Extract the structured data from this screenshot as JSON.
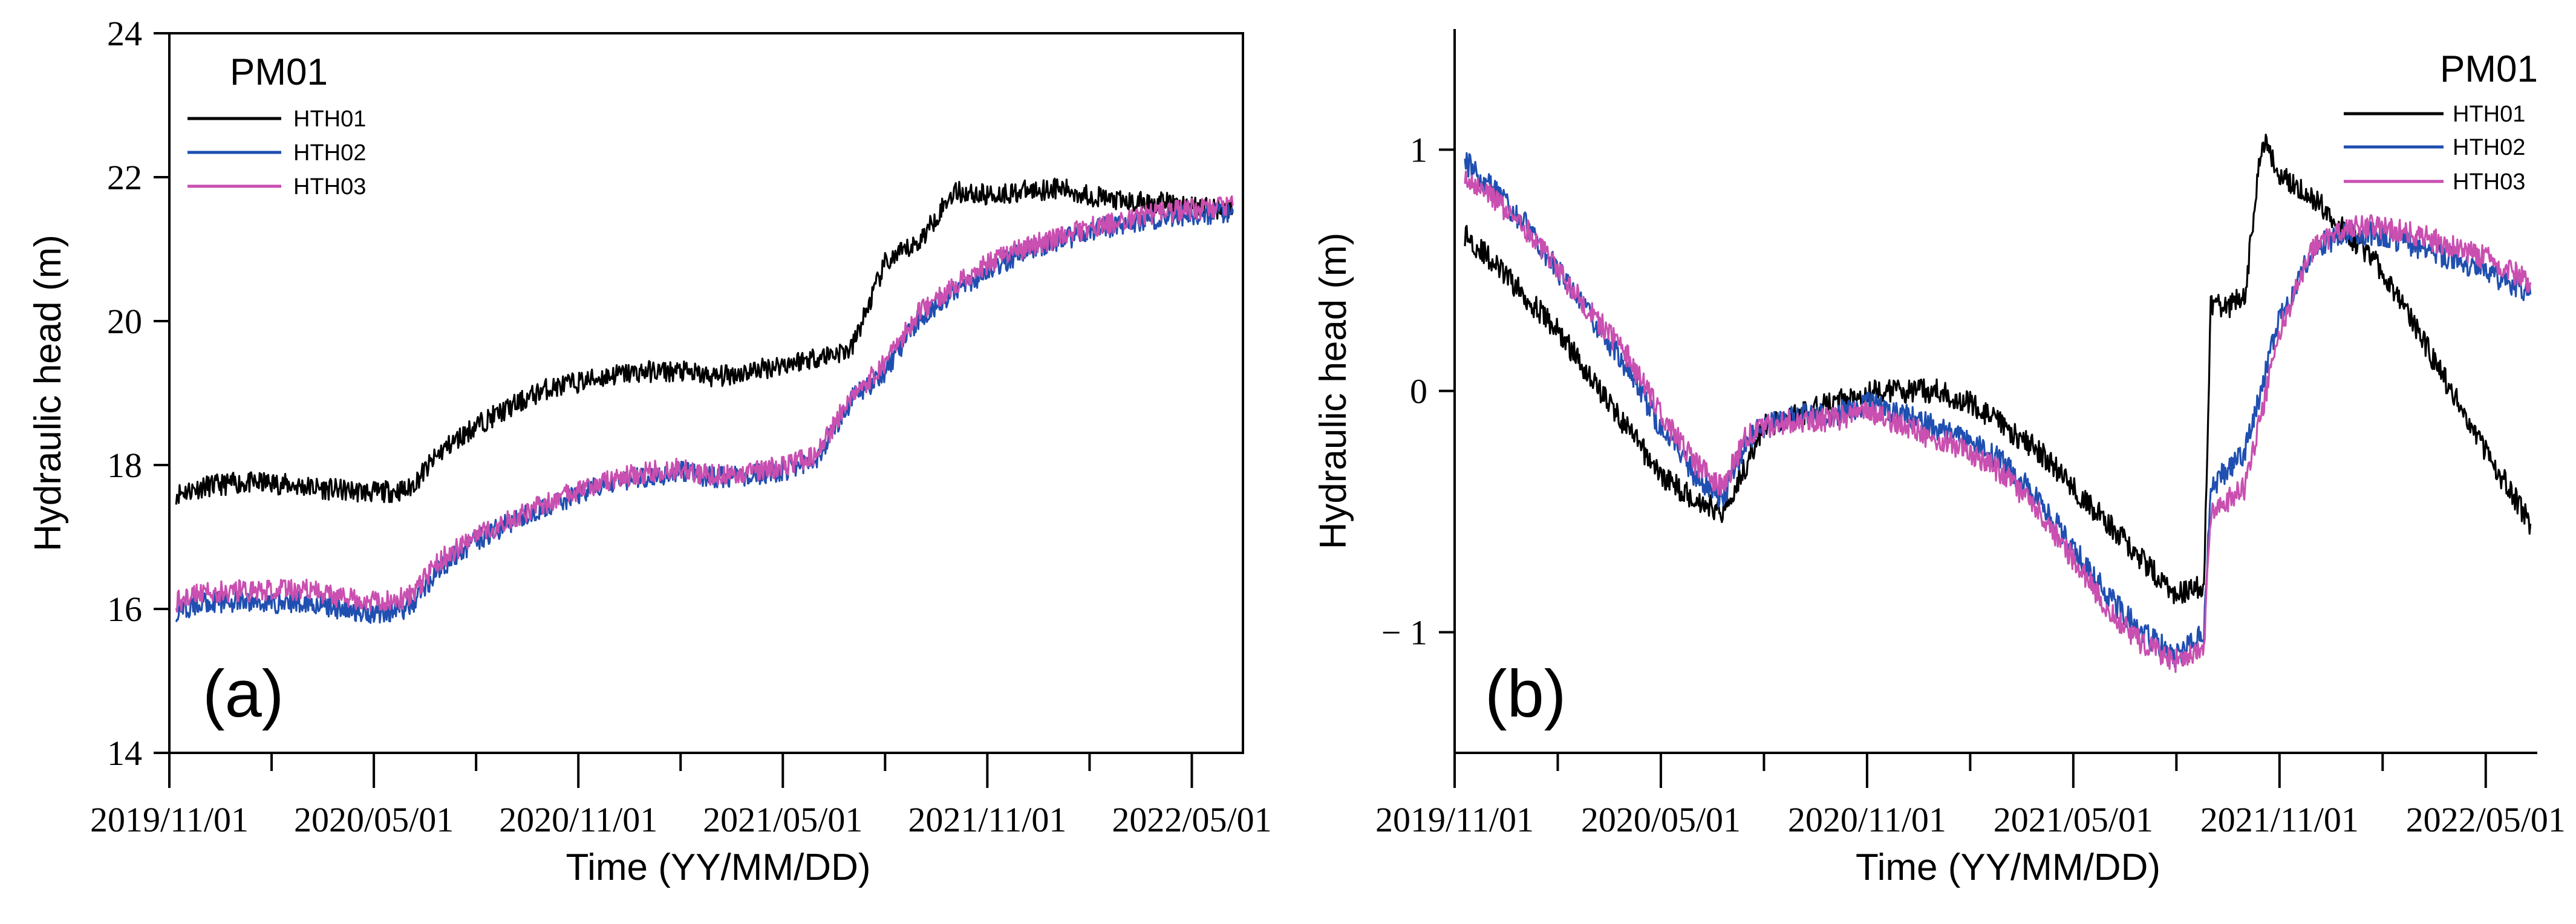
{
  "chart_data": [
    {
      "panel_label": "(a)",
      "type": "line",
      "xlabel": "Time (YY/MM/DD)",
      "ylabel": "Hydraulic head (m)",
      "ylim": [
        14,
        24
      ],
      "yticks": [
        "14",
        "16",
        "18",
        "20",
        "22",
        "24"
      ],
      "ytick_values": [
        14,
        16,
        18,
        20,
        22,
        24
      ],
      "xtick_labels": [
        "2019/11/01",
        "2020/05/01",
        "2020/11/01",
        "2021/05/01",
        "2021/11/01",
        "2022/05/01"
      ],
      "xtick_months": [
        0,
        6,
        12,
        18,
        24,
        30
      ],
      "xlim_months": [
        0,
        31.5
      ],
      "legend_title": "PM01",
      "legend_position": "top-left",
      "series": [
        {
          "name": "HTH01",
          "color": "#000000",
          "x": [
            0.2,
            1,
            2,
            3,
            4,
            5,
            6,
            7,
            8,
            9,
            10,
            11,
            12,
            13,
            14,
            15,
            16,
            17,
            18,
            19,
            20,
            21,
            21.5,
            22,
            23,
            24,
            25,
            26,
            27,
            28,
            29,
            30,
            31.2
          ],
          "values": [
            17.6,
            17.7,
            17.75,
            17.75,
            17.7,
            17.65,
            17.62,
            17.65,
            18.2,
            18.55,
            18.8,
            19.05,
            19.15,
            19.25,
            19.3,
            19.3,
            19.22,
            19.3,
            19.4,
            19.5,
            19.6,
            20.8,
            20.95,
            21.1,
            21.8,
            21.75,
            21.8,
            21.85,
            21.75,
            21.65,
            21.65,
            21.6,
            21.55
          ]
        },
        {
          "name": "HTH02",
          "color": "#1f4fb0",
          "x": [
            0.2,
            1,
            2,
            3,
            4,
            5,
            6,
            7,
            8,
            9,
            10,
            11,
            12,
            13,
            14,
            15,
            16,
            17,
            18,
            19,
            20,
            21,
            22,
            23,
            24,
            25,
            26,
            27,
            28,
            29,
            30,
            31.2
          ],
          "values": [
            15.95,
            16.1,
            16.1,
            16.08,
            16.1,
            16.0,
            15.95,
            16.0,
            16.6,
            16.95,
            17.2,
            17.4,
            17.6,
            17.75,
            17.85,
            17.9,
            17.82,
            17.85,
            17.92,
            18.1,
            18.9,
            19.3,
            20.05,
            20.4,
            20.7,
            20.95,
            21.1,
            21.25,
            21.35,
            21.42,
            21.48,
            21.5
          ]
        },
        {
          "name": "HTH03",
          "color": "#c94fb0",
          "x": [
            0.2,
            1,
            2,
            3,
            4,
            5,
            6,
            7,
            8,
            9,
            10,
            11,
            12,
            13,
            14,
            15,
            16,
            17,
            18,
            19,
            20,
            21,
            22,
            23,
            24,
            25,
            26,
            27,
            28,
            29,
            30,
            31.2
          ],
          "values": [
            16.1,
            16.22,
            16.25,
            16.25,
            16.28,
            16.15,
            16.12,
            16.15,
            16.7,
            17.0,
            17.25,
            17.45,
            17.65,
            17.8,
            17.9,
            17.95,
            17.85,
            17.9,
            17.98,
            18.15,
            18.95,
            19.4,
            20.12,
            20.5,
            20.8,
            21.0,
            21.15,
            21.3,
            21.4,
            21.5,
            21.55,
            21.6
          ]
        }
      ]
    },
    {
      "panel_label": "(b)",
      "type": "line",
      "xlabel": "Time (YY/MM/DD)",
      "ylabel": "Hydraulic head (m)",
      "ylim": [
        -1.5,
        1.5
      ],
      "yticks": [
        "1",
        "0",
        "− 1"
      ],
      "ytick_values": [
        1,
        0,
        -1
      ],
      "xtick_labels": [
        "2019/11/01",
        "2020/05/01",
        "2020/11/01",
        "2021/05/01",
        "2021/11/01",
        "2022/05/01"
      ],
      "xtick_months": [
        0,
        6,
        12,
        18,
        24,
        30
      ],
      "xlim_months": [
        0,
        31.5
      ],
      "legend_title": "PM01",
      "legend_position": "top-right",
      "series": [
        {
          "name": "HTH01",
          "color": "#000000",
          "x": [
            0.3,
            1,
            2,
            3,
            4,
            5,
            6,
            7,
            7.8,
            8.5,
            9,
            10,
            11,
            12,
            13,
            14,
            15,
            16,
            17,
            18,
            19,
            20,
            21,
            21.8,
            22,
            22.5,
            23,
            23.5,
            24,
            25,
            26,
            27,
            28,
            29,
            30,
            31.3
          ],
          "values": [
            0.65,
            0.55,
            0.4,
            0.25,
            0.05,
            -0.15,
            -0.35,
            -0.45,
            -0.5,
            -0.3,
            -0.15,
            -0.1,
            -0.05,
            0.0,
            0.0,
            0.0,
            -0.05,
            -0.15,
            -0.25,
            -0.4,
            -0.55,
            -0.7,
            -0.85,
            -0.8,
            0.35,
            0.35,
            0.4,
            1.05,
            0.9,
            0.8,
            0.65,
            0.5,
            0.25,
            0.0,
            -0.25,
            -0.55
          ]
        },
        {
          "name": "HTH02",
          "color": "#1f4fb0",
          "x": [
            0.3,
            1,
            2,
            3,
            4,
            5,
            6,
            7,
            7.8,
            8.5,
            9,
            10,
            11,
            12,
            13,
            14,
            15,
            16,
            17,
            18,
            19,
            20,
            21,
            21.8,
            22,
            23,
            24,
            25,
            26,
            27,
            28,
            29,
            30,
            31.3
          ],
          "values": [
            0.95,
            0.85,
            0.7,
            0.5,
            0.3,
            0.1,
            -0.15,
            -0.35,
            -0.45,
            -0.2,
            -0.15,
            -0.1,
            -0.1,
            -0.05,
            -0.1,
            -0.15,
            -0.2,
            -0.3,
            -0.45,
            -0.65,
            -0.85,
            -1.0,
            -1.1,
            -1.0,
            -0.4,
            -0.25,
            0.3,
            0.6,
            0.65,
            0.65,
            0.6,
            0.55,
            0.5,
            0.4
          ]
        },
        {
          "name": "HTH03",
          "color": "#c94fb0",
          "x": [
            0.3,
            1,
            2,
            3,
            4,
            5,
            6,
            7,
            7.8,
            8.5,
            9,
            10,
            11,
            12,
            13,
            14,
            15,
            16,
            17,
            18,
            19,
            20,
            21,
            21.8,
            22,
            23,
            24,
            25,
            26,
            27,
            28,
            29,
            30,
            31.3
          ],
          "values": [
            0.9,
            0.82,
            0.68,
            0.5,
            0.32,
            0.15,
            -0.1,
            -0.3,
            -0.4,
            -0.18,
            -0.15,
            -0.12,
            -0.12,
            -0.08,
            -0.14,
            -0.2,
            -0.25,
            -0.35,
            -0.5,
            -0.7,
            -0.9,
            -1.05,
            -1.12,
            -1.05,
            -0.5,
            -0.4,
            0.25,
            0.6,
            0.68,
            0.68,
            0.65,
            0.6,
            0.55,
            0.45
          ]
        }
      ]
    }
  ]
}
